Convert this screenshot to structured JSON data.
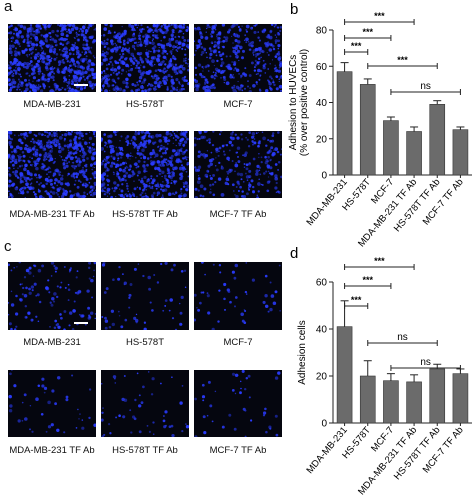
{
  "panels": {
    "a": {
      "letter": "a",
      "captions": [
        "MDA-MB-231",
        "HS-578T",
        "MCF-7",
        "MDA-MB-231 TF Ab",
        "HS-578T TF Ab",
        "MCF-7 TF Ab"
      ],
      "density": [
        0.95,
        0.85,
        0.55,
        0.8,
        0.78,
        0.35
      ]
    },
    "c": {
      "letter": "c",
      "captions": [
        "MDA-MB-231",
        "HS-578T",
        "MCF-7",
        "MDA-MB-231 TF Ab",
        "HS-578T TF Ab",
        "MCF-7 TF Ab"
      ],
      "density": [
        0.28,
        0.14,
        0.12,
        0.1,
        0.12,
        0.1
      ]
    }
  },
  "colors": {
    "bar": "#6b6b6b",
    "micro_bg": "#05060f",
    "cell": "#2a3cff"
  },
  "chart_data": [
    {
      "panel": "b",
      "type": "bar",
      "categories": [
        "MDA-MB-231",
        "HS-578T",
        "MCF-7",
        "MDA-MB-231 TF Ab",
        "HS-578T TF Ab",
        "MCF-7 TF Ab"
      ],
      "values": [
        57,
        50,
        30,
        24,
        39,
        25
      ],
      "errors": [
        5,
        3,
        2,
        2.5,
        2,
        1.5
      ],
      "ylabel": "Adhesion to HUVECs\n(% over positive control)",
      "ylim": [
        0,
        80
      ],
      "yticks": [
        0,
        20,
        40,
        60,
        80
      ],
      "significance": [
        {
          "from": 0,
          "to": 1,
          "label": "***"
        },
        {
          "from": 0,
          "to": 2,
          "label": "***"
        },
        {
          "from": 0,
          "to": 3,
          "label": "***"
        },
        {
          "from": 1,
          "to": 4,
          "label": "***"
        },
        {
          "from": 2,
          "to": 5,
          "label": "ns"
        }
      ]
    },
    {
      "panel": "d",
      "type": "bar",
      "categories": [
        "MDA-MB-231",
        "HS-578T",
        "MCF-7",
        "MDA-MB-231 TF Ab",
        "HS-578T TF Ab",
        "MCF-7 TF Ab"
      ],
      "values": [
        41,
        20,
        18,
        17.5,
        23,
        21
      ],
      "errors": [
        11,
        6.5,
        3,
        3,
        2,
        2
      ],
      "ylabel": "Adhesion cells",
      "ylim": [
        0,
        60
      ],
      "yticks": [
        0,
        20,
        40,
        60
      ],
      "significance": [
        {
          "from": 0,
          "to": 1,
          "label": "***"
        },
        {
          "from": 0,
          "to": 2,
          "label": "***"
        },
        {
          "from": 0,
          "to": 3,
          "label": "***"
        },
        {
          "from": 1,
          "to": 4,
          "label": "ns"
        },
        {
          "from": 2,
          "to": 5,
          "label": "ns"
        }
      ]
    }
  ]
}
